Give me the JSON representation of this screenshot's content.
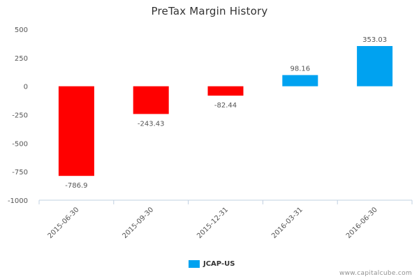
{
  "chart_data": {
    "type": "bar",
    "title": "PreTax Margin History",
    "categories": [
      "2015-06-30",
      "2015-09-30",
      "2015-12-31",
      "2016-03-31",
      "2016-06-30"
    ],
    "series": [
      {
        "name": "JCAP-US",
        "values": [
          -786.9,
          -243.43,
          -82.44,
          98.16,
          353.03
        ],
        "value_labels": [
          "-786.9",
          "-243.43",
          "-82.44",
          "98.16",
          "353.03"
        ]
      }
    ],
    "ylim": [
      -1000,
      500
    ],
    "yticks": [
      500,
      250,
      0,
      -250,
      -500,
      -750,
      -1000
    ],
    "ytick_labels": [
      "500",
      "250",
      "0",
      "-250",
      "-500",
      "-750",
      "-1000"
    ],
    "colors": {
      "positive": "#00a2f0",
      "negative": "#ff0000"
    },
    "grid": false,
    "legend_position": "bottom-center"
  },
  "legend": {
    "label": "JCAP-US",
    "color": "#00a2f0"
  },
  "watermark": "www.capitalcube.com"
}
